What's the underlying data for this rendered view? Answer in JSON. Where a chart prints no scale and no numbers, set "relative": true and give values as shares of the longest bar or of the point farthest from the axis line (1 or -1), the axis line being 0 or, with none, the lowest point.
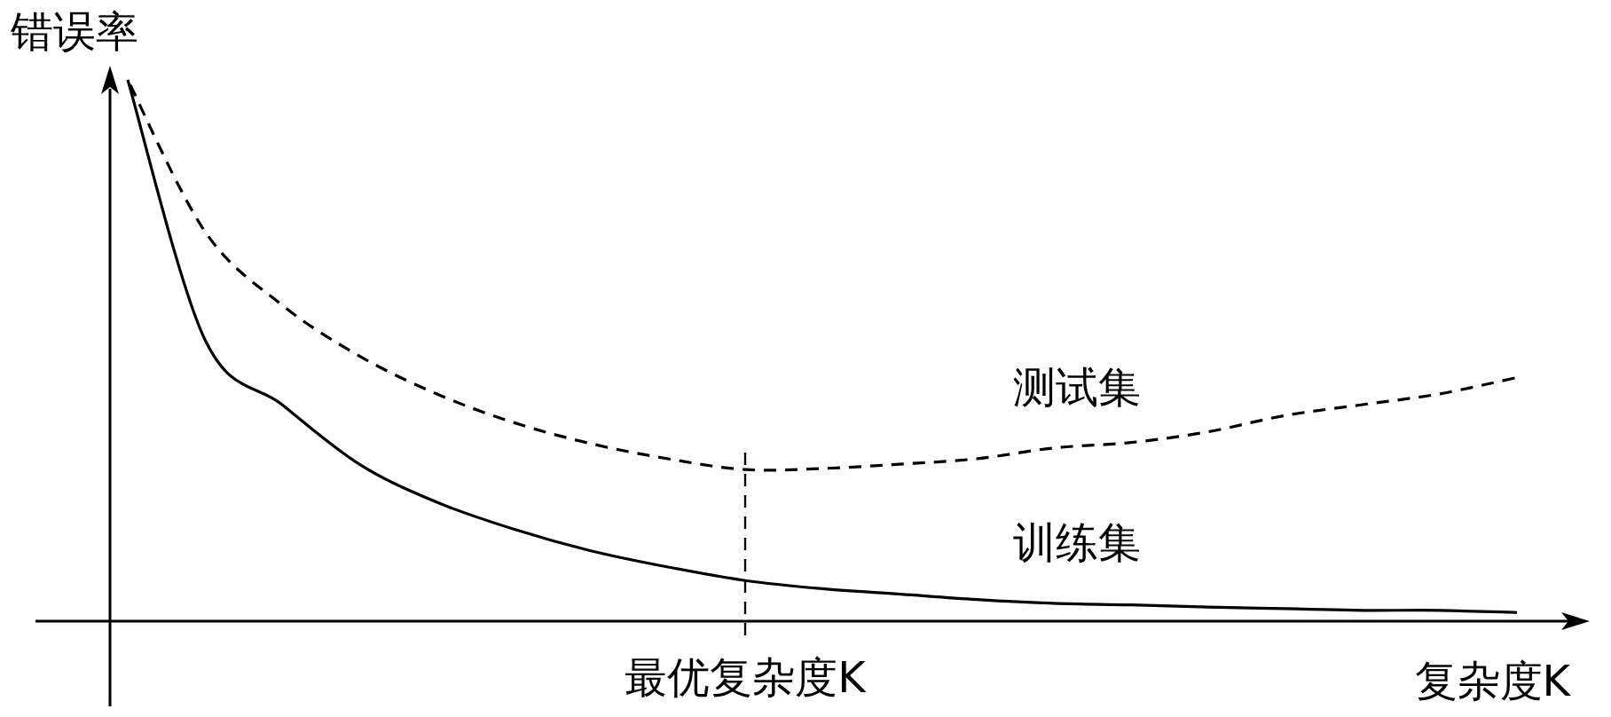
{
  "chart_data": {
    "type": "line",
    "relative": true,
    "xlabel": "复杂度K",
    "ylabel": "错误率",
    "categories": [
      null,
      null,
      null,
      null,
      null,
      null,
      null,
      null,
      null,
      null,
      null,
      null,
      null,
      null,
      null,
      null,
      null,
      null,
      null
    ],
    "annotations": [
      "最优复杂度K"
    ],
    "series": [
      {
        "name": "测试集",
        "color": "#000000",
        "line_style": "dashed",
        "values": [
          1.0,
          0.72,
          0.584,
          0.49,
          0.42,
          0.367,
          0.328,
          0.3,
          0.28,
          0.282,
          0.29,
          0.3,
          0.32,
          0.33,
          0.35,
          0.38,
          0.4,
          0.42,
          0.45
        ]
      },
      {
        "name": "训练集",
        "color": "#000000",
        "line_style": "solid",
        "values": [
          1.0,
          0.52,
          0.4,
          0.29,
          0.22,
          0.17,
          0.13,
          0.1,
          0.075,
          0.06,
          0.05,
          0.04,
          0.033,
          0.03,
          0.026,
          0.023,
          0.02,
          0.02,
          0.016
        ]
      }
    ]
  }
}
